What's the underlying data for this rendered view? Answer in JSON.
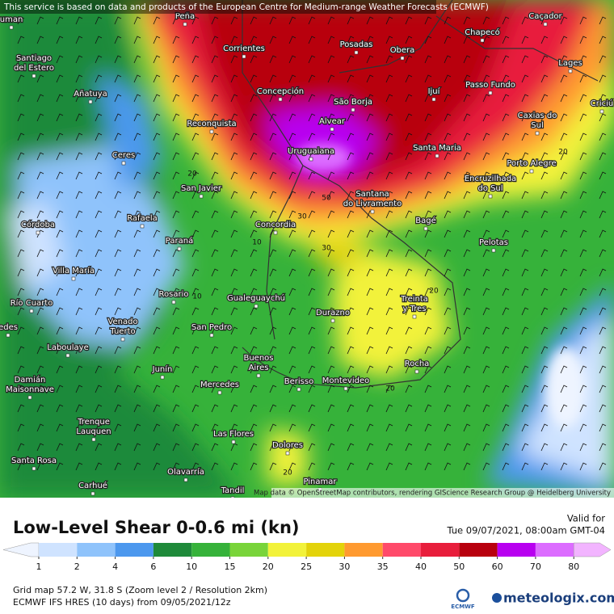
{
  "header": {
    "notice": "This service is based on data and products of the European Centre for Medium-range Weather Forecasts (ECMWF)"
  },
  "map": {
    "cities": [
      [
        "uman"
      ],
      [
        "Peña"
      ],
      [
        "Corrientes"
      ],
      [
        "Posadas"
      ],
      [
        "Obera"
      ],
      [
        "Chapecó"
      ],
      [
        "Caçador"
      ],
      [
        "Lages"
      ],
      [
        "Santiago",
        "del Estero"
      ],
      [
        "Añatuya"
      ],
      [
        "Concepción"
      ],
      [
        "São Borja"
      ],
      [
        "Ijuí"
      ],
      [
        "Passo Fundo"
      ],
      [
        "Caxias do",
        "Sul"
      ],
      [
        "Criciú"
      ],
      [
        "Reconquista"
      ],
      [
        "Alvear"
      ],
      [
        "Uruguaiana"
      ],
      [
        "Santa Maria"
      ],
      [
        "Ceres"
      ],
      [
        "Porto Alegre"
      ],
      [
        "Encruzilhada",
        "do Sul"
      ],
      [
        "San Javier"
      ],
      [
        "Santana",
        "do Livramento"
      ],
      [
        "Rafaela"
      ],
      [
        "Concordia"
      ],
      [
        "Bagé"
      ],
      [
        "Córdoba"
      ],
      [
        "Paraná"
      ],
      [
        "Pelotas"
      ],
      [
        "Villa María"
      ],
      [
        "Rosario"
      ],
      [
        "Gualeguaychú"
      ],
      [
        "Treinta",
        "y Tres"
      ],
      [
        "Río Cuarto"
      ],
      [
        "Durazno"
      ],
      [
        "Venado",
        "Tuerto"
      ],
      [
        "edes"
      ],
      [
        "San Pedro"
      ],
      [
        "Laboulaye"
      ],
      [
        "Buenos",
        "Aires"
      ],
      [
        "Rocha"
      ],
      [
        "Junín"
      ],
      [
        "Damián",
        "Maisonnave"
      ],
      [
        "Mercedes"
      ],
      [
        "Berisso"
      ],
      [
        "Montevideo"
      ],
      [
        "Trenque",
        "Lauquen"
      ],
      [
        "Las Flores"
      ],
      [
        "Dolores"
      ],
      [
        "Santa Rosa"
      ],
      [
        "Olavarría"
      ],
      [
        "Carhué"
      ],
      [
        "Pinamar"
      ],
      [
        "Tandil"
      ]
    ],
    "contour_labels": [
      20,
      30,
      30,
      20,
      10,
      10,
      20,
      20,
      20,
      50
    ],
    "attribution": "Map data © OpenStreetMap contributors, rendering GIScience Research Group @ Heidelberg University"
  },
  "footer": {
    "title": "Low-Level Shear 0-0.6 mi (kn)",
    "valid_label": "Valid for",
    "valid_time": "Tue 09/07/2021, 08:00am GMT-04",
    "legend": {
      "ticks": [
        1,
        2,
        4,
        6,
        10,
        15,
        20,
        25,
        30,
        35,
        40,
        50,
        60,
        70,
        80
      ],
      "colors": [
        "#eef4ff",
        "#cfe3ff",
        "#8fc3fb",
        "#4c98ee",
        "#1f8a3a",
        "#36b23a",
        "#79d43a",
        "#f2f23a",
        "#e3d30a",
        "#ff9a30",
        "#ff4a6a",
        "#e81e3c",
        "#b8000e",
        "#b800f0",
        "#dc6cff",
        "#f2b4ff"
      ]
    },
    "grid_info": "Grid map 57.2 W, 31.8 S (Zoom level 2 / Resolution 2km)",
    "model_info": "ECMWF IFS HRES (10 days) from 09/05/2021/12z",
    "ecmwf_logo": "ECMWF",
    "brand": "meteologix.com"
  }
}
